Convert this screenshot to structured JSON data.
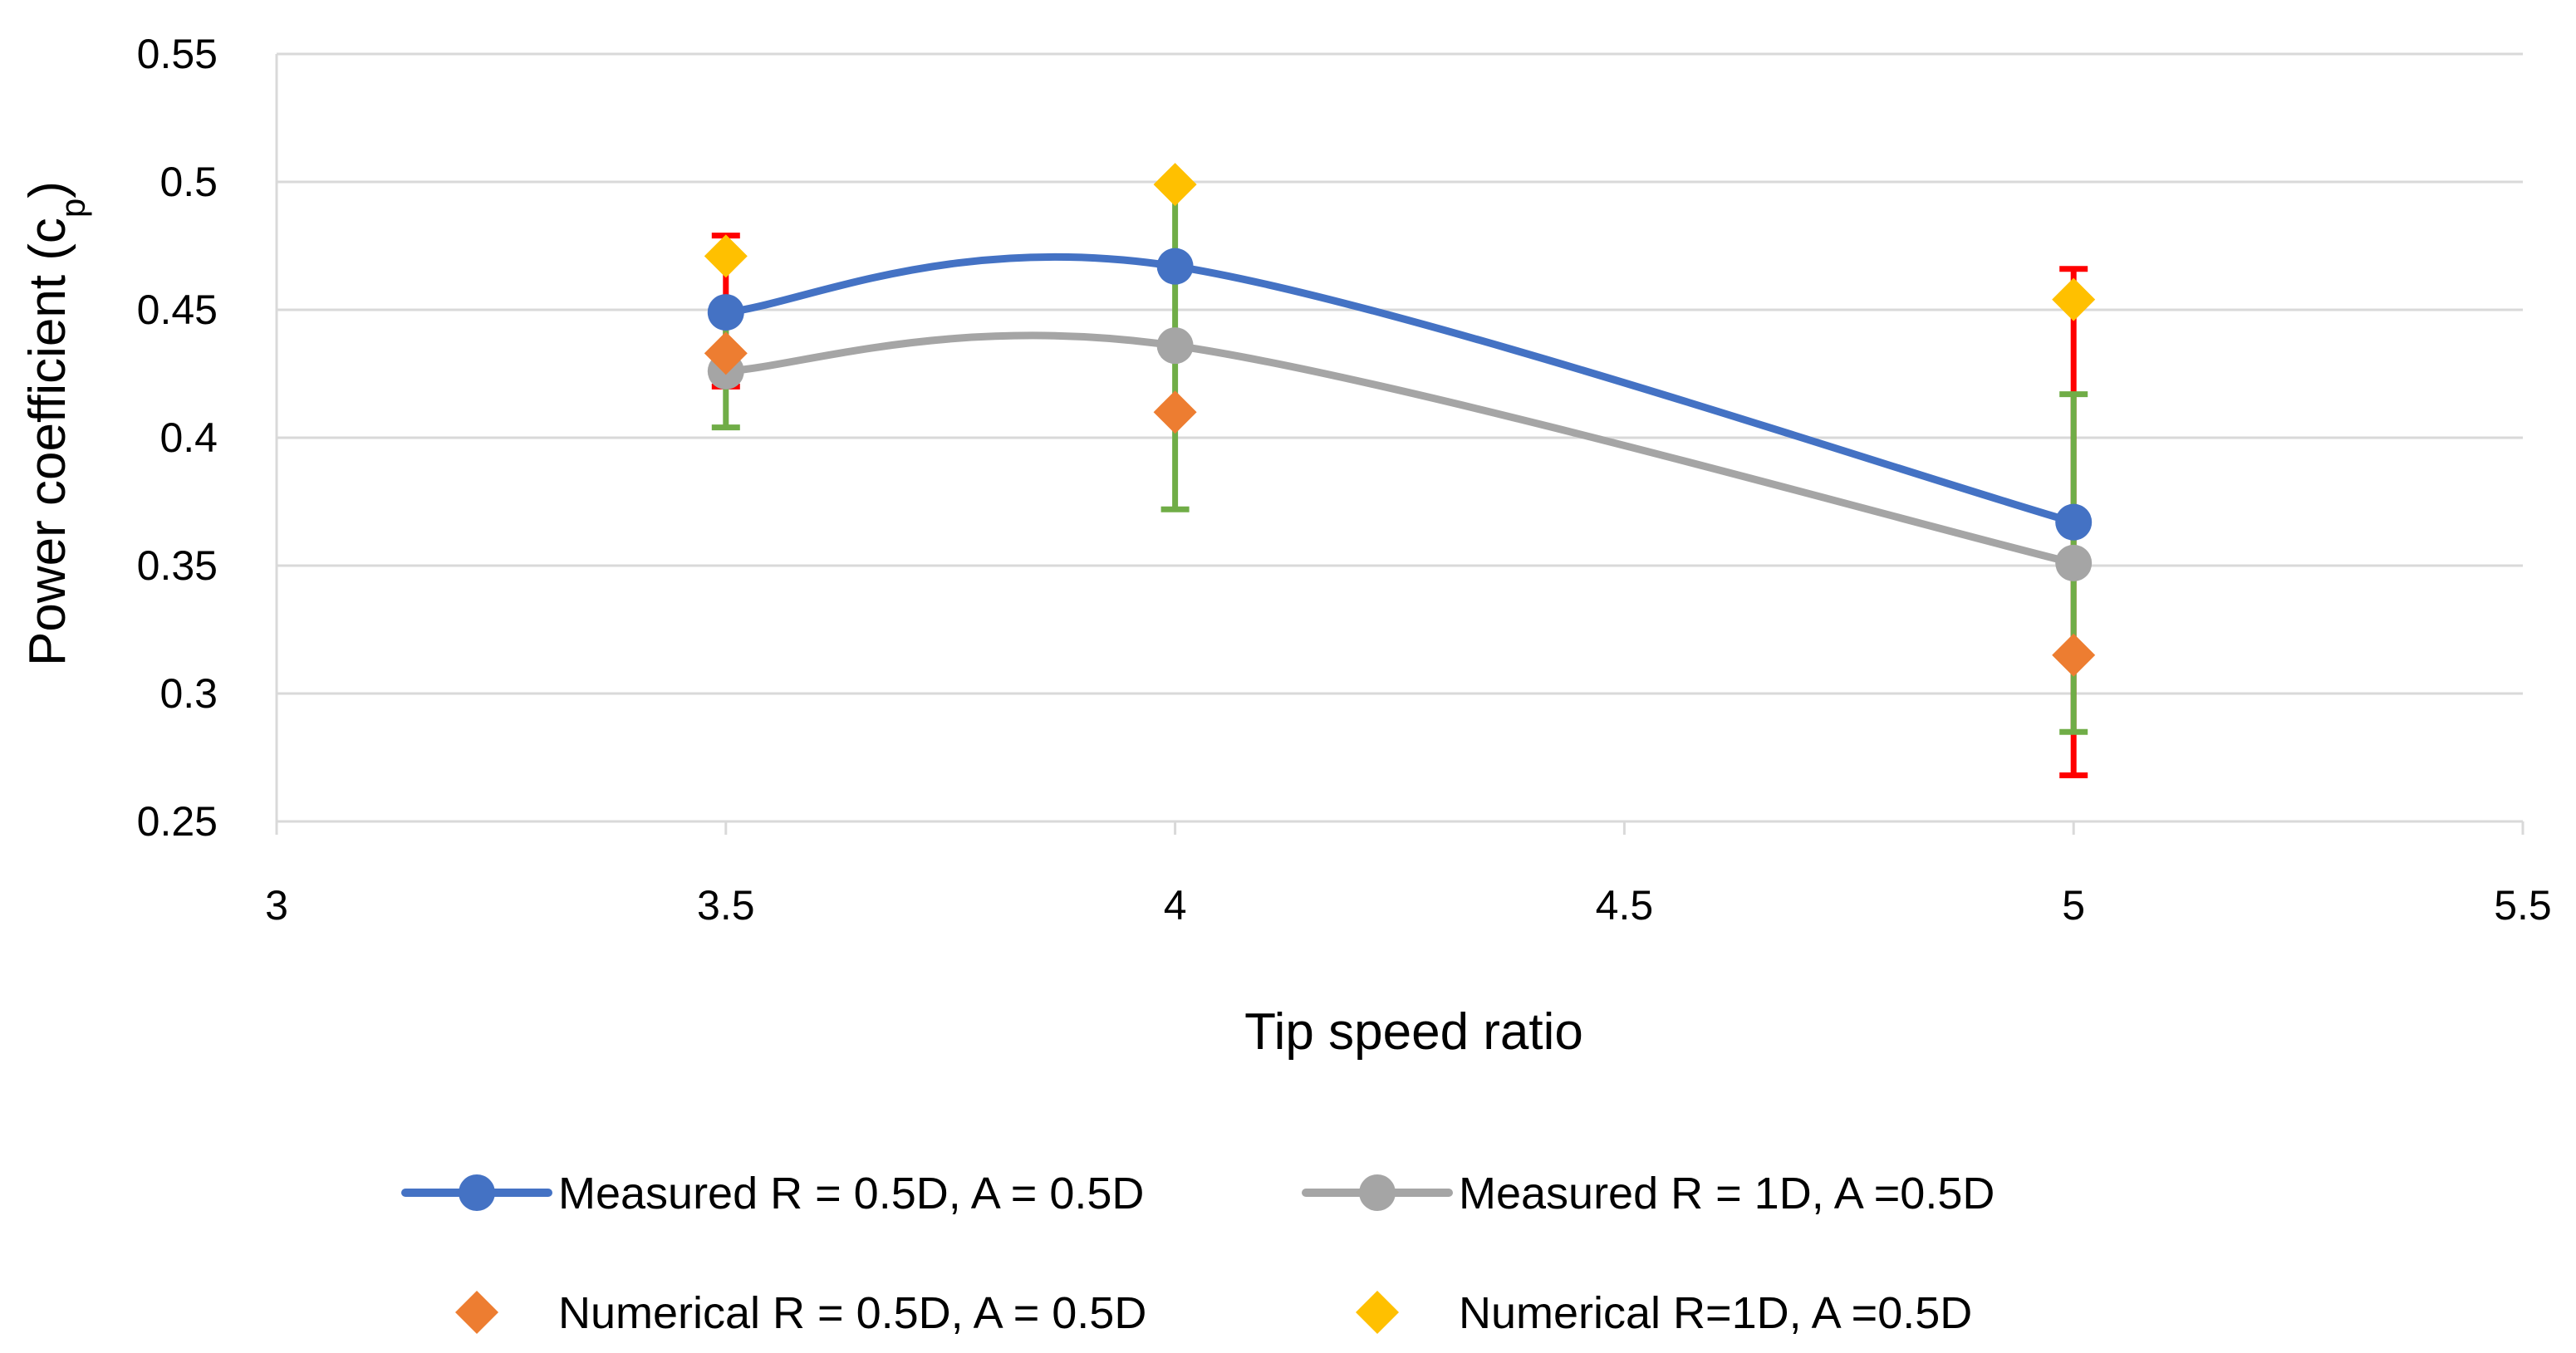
{
  "chart_data": {
    "type": "scatter",
    "title": "",
    "xlabel": "Tip speed ratio",
    "ylabel_main": "Power coefficient (c",
    "ylabel_sub": "p",
    "ylabel_close": ")",
    "xlim": [
      3,
      5.5
    ],
    "ylim": [
      0.25,
      0.55
    ],
    "xticks": [
      3,
      3.5,
      4,
      4.5,
      5,
      5.5
    ],
    "yticks": [
      0.25,
      0.3,
      0.35,
      0.4,
      0.45,
      0.5,
      0.55
    ],
    "xtick_labels": [
      "3",
      "3.5",
      "4",
      "4.5",
      "5",
      "5.5"
    ],
    "ytick_labels": [
      "0.25",
      "0.3",
      "0.35",
      "0.4",
      "0.45",
      "0.5",
      "0.55"
    ],
    "grid": "horizontal",
    "series": [
      {
        "name": "Measured R = 0.5D, A = 0.5D",
        "kind": "line-marker",
        "marker": "circle",
        "color": "#4472C4",
        "x": [
          3.5,
          4,
          5
        ],
        "y": [
          0.449,
          0.467,
          0.367
        ],
        "error_color": "#FF0000",
        "error_low": [
          0.42,
          null,
          0.268
        ],
        "error_high": [
          0.479,
          null,
          0.466
        ]
      },
      {
        "name": "Measured R = 1D, A =0.5D",
        "kind": "line-marker",
        "marker": "circle",
        "color": "#A5A5A5",
        "x": [
          3.5,
          4,
          5
        ],
        "y": [
          0.426,
          0.436,
          0.351
        ],
        "error_color": "#70AD47",
        "error_low": [
          0.404,
          0.372,
          0.285
        ],
        "error_high": [
          0.448,
          0.5,
          0.417
        ]
      },
      {
        "name": "Numerical R = 0.5D, A = 0.5D",
        "kind": "marker",
        "marker": "diamond",
        "color": "#ED7D31",
        "x": [
          3.5,
          4,
          5
        ],
        "y": [
          0.433,
          0.41,
          0.315
        ]
      },
      {
        "name": "Numerical R=1D, A =0.5D",
        "kind": "marker",
        "marker": "diamond",
        "color": "#FFC000",
        "x": [
          3.5,
          4,
          5
        ],
        "y": [
          0.471,
          0.499,
          0.454
        ]
      }
    ],
    "legend_position": "bottom"
  }
}
